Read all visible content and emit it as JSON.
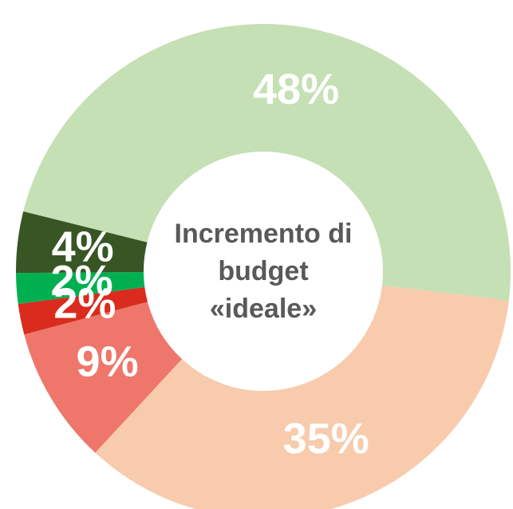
{
  "chart_data": {
    "type": "donut",
    "categories": [
      null,
      null,
      null,
      null,
      null,
      null
    ],
    "values": [
      48,
      35,
      9,
      2,
      2,
      4
    ],
    "value_labels": [
      "48%",
      "35%",
      "9%",
      "2%",
      "2%",
      "4%"
    ],
    "colors": [
      "#c5e0b4",
      "#f8cbad",
      "#ee766b",
      "#d92b1e",
      "#00b050",
      "#375623"
    ],
    "center_label": "Incremento di budget «ideale»"
  }
}
